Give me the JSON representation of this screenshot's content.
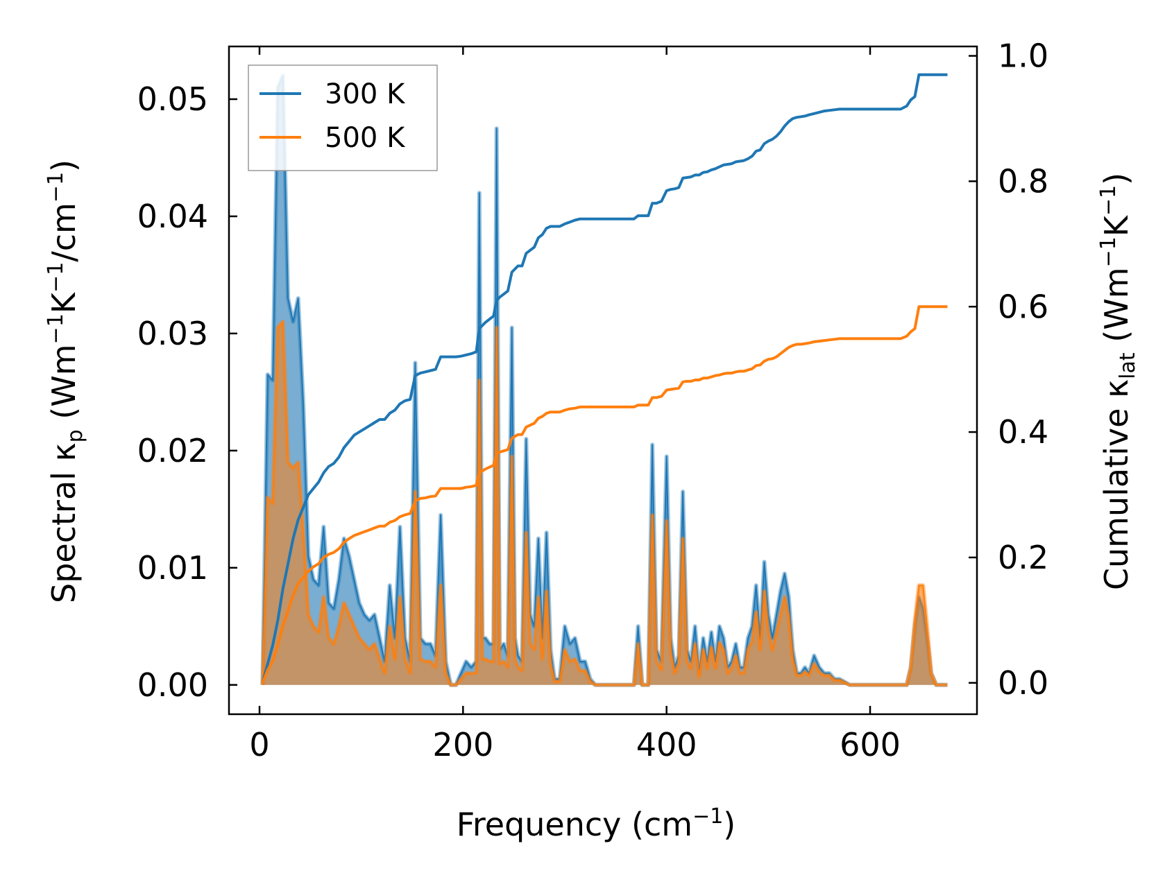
{
  "chart_data": {
    "type": "line",
    "xlabel": {
      "text": "Frequency (cm",
      "sup": "−1",
      "tail": ")"
    },
    "ylabel_left": {
      "a": "Spectral κ",
      "sub": "p",
      "b": " (Wm",
      "sup1": "−1",
      "c": "K",
      "sup2": "−1",
      "d": "/cm",
      "sup3": "−1",
      "e": ")"
    },
    "ylabel_right": {
      "a": "Cumulative κ",
      "sub": "lat",
      "b": " (Wm",
      "sup1": "−1",
      "c": "K",
      "sup2": "−1",
      "d": ")"
    },
    "xlim": [
      -30,
      705
    ],
    "ylim_left": [
      -0.0025,
      0.0545
    ],
    "ylim_right": [
      -0.05,
      1.015
    ],
    "x_ticks": [
      0,
      200,
      400,
      600
    ],
    "x_tick_labels": [
      "0",
      "200",
      "400",
      "600"
    ],
    "y_left_ticks": [
      0.0,
      0.01,
      0.02,
      0.03,
      0.04,
      0.05
    ],
    "y_left_tick_labels": [
      "0.00",
      "0.01",
      "0.02",
      "0.03",
      "0.04",
      "0.05"
    ],
    "y_right_ticks": [
      0.0,
      0.2,
      0.4,
      0.6,
      0.8,
      1.0
    ],
    "y_right_tick_labels": [
      "0.0",
      "0.2",
      "0.4",
      "0.6",
      "0.8",
      "1.0"
    ],
    "grid": false,
    "legend": {
      "position": "top-left",
      "entries": [
        "300 K",
        "500 K"
      ]
    },
    "colors": {
      "300K": "#1f77b4",
      "500K": "#ff7f0e"
    },
    "spectral_300K": {
      "x": [
        3,
        8,
        13,
        18,
        23,
        28,
        33,
        38,
        43,
        48,
        53,
        58,
        63,
        68,
        73,
        78,
        83,
        88,
        93,
        98,
        103,
        108,
        113,
        118,
        123,
        128,
        133,
        138,
        143,
        148,
        153,
        158,
        163,
        168,
        173,
        178,
        183,
        188,
        193,
        198,
        203,
        208,
        213,
        216,
        219,
        222,
        226,
        230,
        233,
        236,
        240,
        244,
        248,
        251,
        254,
        258,
        262,
        266,
        270,
        274,
        278,
        282,
        286,
        290,
        295,
        300,
        305,
        310,
        315,
        320,
        325,
        330,
        340,
        350,
        360,
        368,
        372,
        376,
        382,
        386,
        390,
        395,
        400,
        404,
        408,
        412,
        416,
        420,
        424,
        428,
        432,
        436,
        440,
        444,
        448,
        452,
        456,
        460,
        464,
        468,
        472,
        476,
        480,
        484,
        488,
        492,
        496,
        500,
        504,
        508,
        512,
        516,
        520,
        524,
        528,
        532,
        536,
        540,
        545,
        550,
        555,
        560,
        565,
        570,
        580,
        590,
        600,
        610,
        620,
        630,
        636,
        640,
        644,
        648,
        652,
        656,
        660,
        665,
        670,
        676
      ],
      "y": [
        0,
        0.0265,
        0.026,
        0.051,
        0.052,
        0.033,
        0.031,
        0.033,
        0.024,
        0.011,
        0.009,
        0.0085,
        0.0135,
        0.007,
        0.0065,
        0.009,
        0.0125,
        0.011,
        0.009,
        0.007,
        0.006,
        0.0055,
        0.006,
        0.004,
        0.002,
        0.0085,
        0.004,
        0.0135,
        0.004,
        0.002,
        0.0275,
        0.004,
        0.0035,
        0.0035,
        0.0025,
        0.0145,
        0.002,
        0,
        0,
        0.001,
        0.002,
        0.0015,
        0.002,
        0.042,
        0.004,
        0.004,
        0.0035,
        0.0035,
        0.0475,
        0.003,
        0.0035,
        0.0025,
        0.0305,
        0.004,
        0.0025,
        0.002,
        0.021,
        0.006,
        0.005,
        0.0125,
        0.004,
        0.013,
        0.003,
        0.0005,
        0.0005,
        0.005,
        0.0035,
        0.004,
        0.002,
        0.002,
        0.0005,
        0,
        0,
        0,
        0,
        0,
        0.005,
        0,
        0,
        0.0205,
        0.003,
        0.002,
        0.0195,
        0.004,
        0.0015,
        0.0025,
        0.0165,
        0.003,
        0.002,
        0.005,
        0.001,
        0.004,
        0.002,
        0.0045,
        0.002,
        0.005,
        0.004,
        0.0015,
        0.002,
        0.0035,
        0.0015,
        0.0015,
        0.004,
        0.005,
        0.0085,
        0.004,
        0.0105,
        0.006,
        0.004,
        0.006,
        0.008,
        0.0095,
        0.0075,
        0.003,
        0.001,
        0.001,
        0.0015,
        0.001,
        0.0025,
        0.0015,
        0.001,
        0.001,
        0.0005,
        0.0005,
        0,
        0,
        0,
        0,
        0,
        0,
        0,
        0.0015,
        0.005,
        0.0075,
        0.0065,
        0.004,
        0.001,
        0,
        0,
        0
      ]
    },
    "spectral_500K": {
      "x": [
        3,
        8,
        13,
        18,
        23,
        28,
        33,
        38,
        43,
        48,
        53,
        58,
        63,
        68,
        73,
        78,
        83,
        88,
        93,
        98,
        103,
        108,
        113,
        118,
        123,
        128,
        133,
        138,
        143,
        148,
        153,
        158,
        163,
        168,
        173,
        178,
        183,
        188,
        193,
        198,
        203,
        208,
        213,
        216,
        219,
        222,
        226,
        230,
        233,
        236,
        240,
        244,
        248,
        251,
        254,
        258,
        262,
        266,
        270,
        274,
        278,
        282,
        286,
        290,
        295,
        300,
        305,
        310,
        315,
        320,
        325,
        330,
        340,
        350,
        360,
        368,
        372,
        376,
        382,
        386,
        390,
        395,
        400,
        404,
        408,
        412,
        416,
        420,
        424,
        428,
        432,
        436,
        440,
        444,
        448,
        452,
        456,
        460,
        464,
        468,
        472,
        476,
        480,
        484,
        488,
        492,
        496,
        500,
        504,
        508,
        512,
        516,
        520,
        524,
        528,
        532,
        536,
        540,
        545,
        550,
        555,
        560,
        565,
        570,
        580,
        590,
        600,
        610,
        620,
        630,
        636,
        640,
        644,
        648,
        652,
        656,
        660,
        665,
        670,
        676
      ],
      "y": [
        0,
        0.016,
        0.0155,
        0.0305,
        0.031,
        0.019,
        0.0185,
        0.019,
        0.013,
        0.006,
        0.005,
        0.0045,
        0.0075,
        0.004,
        0.0035,
        0.005,
        0.007,
        0.006,
        0.005,
        0.004,
        0.0035,
        0.003,
        0.0035,
        0.0022,
        0.001,
        0.005,
        0.0022,
        0.0075,
        0.0022,
        0.001,
        0.0165,
        0.0022,
        0.002,
        0.002,
        0.0015,
        0.0085,
        0.001,
        0,
        0,
        0.0005,
        0.001,
        0.001,
        0.001,
        0.026,
        0.0022,
        0.0022,
        0.002,
        0.002,
        0.0305,
        0.0018,
        0.002,
        0.0015,
        0.0195,
        0.0022,
        0.0015,
        0.0012,
        0.013,
        0.0035,
        0.003,
        0.0075,
        0.0022,
        0.008,
        0.0018,
        0.0003,
        0.0003,
        0.003,
        0.002,
        0.0022,
        0.0012,
        0.0012,
        0.0003,
        0,
        0,
        0,
        0,
        0,
        0.0035,
        0,
        0,
        0.0145,
        0.002,
        0.0013,
        0.014,
        0.0028,
        0.001,
        0.0018,
        0.0125,
        0.002,
        0.0014,
        0.0035,
        0.0007,
        0.003,
        0.0014,
        0.0032,
        0.0014,
        0.0036,
        0.003,
        0.001,
        0.0014,
        0.0025,
        0.001,
        0.001,
        0.003,
        0.0037,
        0.0062,
        0.003,
        0.008,
        0.0045,
        0.003,
        0.0045,
        0.006,
        0.0075,
        0.0058,
        0.0022,
        0.0008,
        0.0008,
        0.0011,
        0.0008,
        0.0018,
        0.0011,
        0.0008,
        0.0008,
        0.0004,
        0.0004,
        0,
        0,
        0,
        0,
        0,
        0,
        0,
        0.0015,
        0.0055,
        0.0085,
        0.0085,
        0.005,
        0.001,
        0,
        0,
        0
      ]
    },
    "cumulative_300K": {
      "x": [
        3,
        8,
        13,
        18,
        23,
        28,
        33,
        38,
        43,
        48,
        53,
        58,
        63,
        68,
        73,
        78,
        83,
        88,
        93,
        98,
        103,
        108,
        113,
        118,
        123,
        128,
        133,
        138,
        143,
        148,
        153,
        158,
        163,
        168,
        173,
        178,
        183,
        188,
        193,
        198,
        203,
        208,
        213,
        216,
        219,
        222,
        226,
        230,
        233,
        236,
        240,
        244,
        248,
        251,
        254,
        258,
        262,
        266,
        270,
        274,
        278,
        282,
        286,
        290,
        295,
        300,
        305,
        310,
        315,
        320,
        325,
        330,
        340,
        350,
        360,
        368,
        372,
        376,
        382,
        386,
        390,
        395,
        400,
        404,
        408,
        412,
        416,
        420,
        424,
        428,
        432,
        436,
        440,
        444,
        448,
        452,
        456,
        460,
        464,
        468,
        472,
        476,
        480,
        484,
        488,
        492,
        496,
        500,
        504,
        508,
        512,
        516,
        520,
        524,
        528,
        532,
        536,
        540,
        545,
        550,
        555,
        560,
        565,
        570,
        580,
        590,
        600,
        610,
        620,
        630,
        636,
        640,
        644,
        648,
        652,
        656,
        660,
        665,
        670,
        676
      ],
      "y": [
        0,
        0.03,
        0.06,
        0.1,
        0.15,
        0.19,
        0.23,
        0.26,
        0.28,
        0.3,
        0.31,
        0.32,
        0.335,
        0.345,
        0.35,
        0.36,
        0.375,
        0.385,
        0.395,
        0.4,
        0.405,
        0.41,
        0.415,
        0.42,
        0.42,
        0.43,
        0.435,
        0.445,
        0.45,
        0.452,
        0.49,
        0.494,
        0.496,
        0.498,
        0.5,
        0.52,
        0.52,
        0.52,
        0.52,
        0.521,
        0.523,
        0.525,
        0.528,
        0.565,
        0.57,
        0.575,
        0.58,
        0.585,
        0.61,
        0.615,
        0.62,
        0.625,
        0.655,
        0.66,
        0.665,
        0.665,
        0.685,
        0.69,
        0.695,
        0.71,
        0.715,
        0.725,
        0.728,
        0.728,
        0.728,
        0.732,
        0.735,
        0.738,
        0.74,
        0.74,
        0.74,
        0.74,
        0.74,
        0.74,
        0.74,
        0.74,
        0.745,
        0.745,
        0.745,
        0.765,
        0.765,
        0.768,
        0.785,
        0.787,
        0.788,
        0.79,
        0.805,
        0.806,
        0.807,
        0.81,
        0.81,
        0.814,
        0.815,
        0.818,
        0.82,
        0.823,
        0.826,
        0.827,
        0.828,
        0.831,
        0.832,
        0.833,
        0.836,
        0.84,
        0.848,
        0.85,
        0.86,
        0.864,
        0.867,
        0.872,
        0.879,
        0.888,
        0.895,
        0.9,
        0.902,
        0.903,
        0.904,
        0.906,
        0.908,
        0.91,
        0.912,
        0.913,
        0.914,
        0.915,
        0.915,
        0.915,
        0.915,
        0.915,
        0.915,
        0.915,
        0.92,
        0.93,
        0.935,
        0.97,
        0.97,
        0.97,
        0.97,
        0.97,
        0.97,
        0.97
      ]
    },
    "cumulative_500K": {
      "x": [
        3,
        8,
        13,
        18,
        23,
        28,
        33,
        38,
        43,
        48,
        53,
        58,
        63,
        68,
        73,
        78,
        83,
        88,
        93,
        98,
        103,
        108,
        113,
        118,
        123,
        128,
        133,
        138,
        143,
        148,
        153,
        158,
        163,
        168,
        173,
        178,
        183,
        188,
        193,
        198,
        203,
        208,
        213,
        216,
        219,
        222,
        226,
        230,
        233,
        236,
        240,
        244,
        248,
        251,
        254,
        258,
        262,
        266,
        270,
        274,
        278,
        282,
        286,
        290,
        295,
        300,
        305,
        310,
        315,
        320,
        325,
        330,
        340,
        350,
        360,
        368,
        372,
        376,
        382,
        386,
        390,
        395,
        400,
        404,
        408,
        412,
        416,
        420,
        424,
        428,
        432,
        436,
        440,
        444,
        448,
        452,
        456,
        460,
        464,
        468,
        472,
        476,
        480,
        484,
        488,
        492,
        496,
        500,
        504,
        508,
        512,
        516,
        520,
        524,
        528,
        532,
        536,
        540,
        545,
        550,
        555,
        560,
        565,
        570,
        580,
        590,
        600,
        610,
        620,
        630,
        636,
        640,
        644,
        648,
        652,
        656,
        660,
        665,
        670,
        676
      ],
      "y": [
        0,
        0.02,
        0.035,
        0.06,
        0.09,
        0.115,
        0.14,
        0.158,
        0.168,
        0.178,
        0.185,
        0.19,
        0.2,
        0.205,
        0.208,
        0.214,
        0.224,
        0.23,
        0.235,
        0.238,
        0.241,
        0.244,
        0.247,
        0.25,
        0.25,
        0.256,
        0.259,
        0.265,
        0.268,
        0.27,
        0.29,
        0.294,
        0.295,
        0.297,
        0.298,
        0.31,
        0.31,
        0.31,
        0.31,
        0.31,
        0.312,
        0.313,
        0.315,
        0.335,
        0.338,
        0.341,
        0.344,
        0.347,
        0.365,
        0.368,
        0.37,
        0.372,
        0.39,
        0.393,
        0.396,
        0.396,
        0.408,
        0.411,
        0.414,
        0.422,
        0.425,
        0.43,
        0.432,
        0.432,
        0.432,
        0.435,
        0.437,
        0.438,
        0.44,
        0.44,
        0.44,
        0.44,
        0.44,
        0.44,
        0.44,
        0.44,
        0.443,
        0.443,
        0.443,
        0.455,
        0.455,
        0.457,
        0.467,
        0.468,
        0.469,
        0.47,
        0.48,
        0.481,
        0.481,
        0.483,
        0.483,
        0.486,
        0.486,
        0.488,
        0.49,
        0.491,
        0.493,
        0.494,
        0.494,
        0.496,
        0.497,
        0.497,
        0.499,
        0.501,
        0.506,
        0.507,
        0.513,
        0.516,
        0.517,
        0.52,
        0.525,
        0.53,
        0.535,
        0.538,
        0.54,
        0.54,
        0.541,
        0.542,
        0.544,
        0.545,
        0.546,
        0.547,
        0.548,
        0.549,
        0.549,
        0.549,
        0.549,
        0.549,
        0.549,
        0.549,
        0.553,
        0.56,
        0.565,
        0.6,
        0.6,
        0.6,
        0.6,
        0.6,
        0.6,
        0.6
      ]
    }
  }
}
